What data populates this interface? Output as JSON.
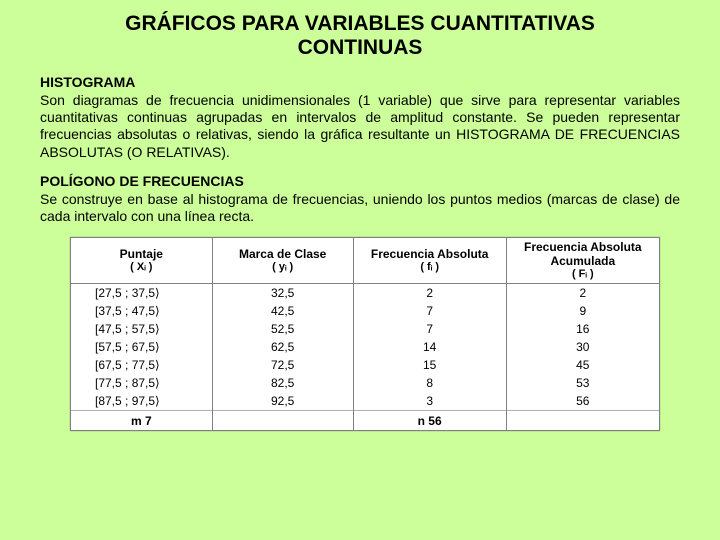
{
  "title_line1": "GRÁFICOS PARA VARIABLES CUANTITATIVAS",
  "title_line2": "CONTINUAS",
  "sections": [
    {
      "heading": "HISTOGRAMA",
      "body": "Son diagramas de frecuencia unidimensionales (1 variable) que sirve para representar variables cuantitativas continuas agrupadas en intervalos de amplitud constante. Se pueden representar frecuencias absolutas o relativas, siendo la gráfica resultante un HISTOGRAMA DE FRECUENCIAS ABSOLUTAS (O RELATIVAS)."
    },
    {
      "heading": "POLÍGONO DE FRECUENCIAS",
      "body": "Se construye en base al histograma de frecuencias, uniendo los puntos medios (marcas de clase) de cada intervalo con una línea recta."
    }
  ],
  "table": {
    "columns": [
      {
        "label": "Puntaje",
        "sub": "( Xᵢ )"
      },
      {
        "label": "Marca de Clase",
        "sub": "( yᵢ )"
      },
      {
        "label": "Frecuencia Absoluta",
        "sub": "( fᵢ )"
      },
      {
        "label": "Frecuencia Absoluta Acumulada",
        "sub": "( Fᵢ )"
      }
    ],
    "rows": [
      [
        "[27,5 ; 37,5⟩",
        "32,5",
        "2",
        "2"
      ],
      [
        "[37,5 ; 47,5⟩",
        "42,5",
        "7",
        "9"
      ],
      [
        "[47,5 ; 57,5⟩",
        "52,5",
        "7",
        "16"
      ],
      [
        "[57,5 ; 67,5⟩",
        "62,5",
        "14",
        "30"
      ],
      [
        "[67,5 ; 77,5⟩",
        "72,5",
        "15",
        "45"
      ],
      [
        "[77,5 ; 87,5⟩",
        "82,5",
        "8",
        "53"
      ],
      [
        "[87,5 ; 97,5⟩",
        "92,5",
        "3",
        "56"
      ]
    ],
    "foot": {
      "m": "m   7",
      "n": "n   56"
    }
  }
}
